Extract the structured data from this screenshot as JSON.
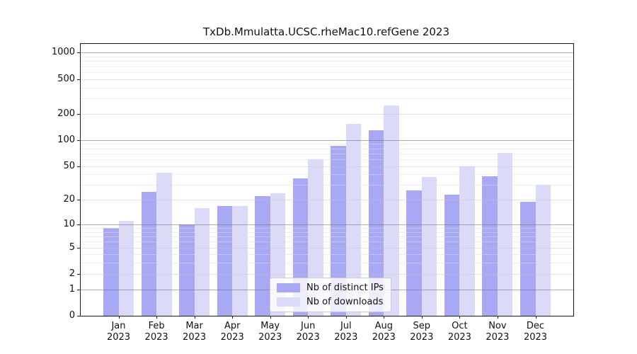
{
  "chart_data": {
    "type": "bar",
    "title": "TxDb.Mmulatta.UCSC.rheMac10.refGene 2023",
    "categories": [
      "Jan",
      "Feb",
      "Mar",
      "Apr",
      "May",
      "Jun",
      "Jul",
      "Aug",
      "Sep",
      "Oct",
      "Nov",
      "Dec"
    ],
    "x_year_label": "2023",
    "series": [
      {
        "name": "Nb of distinct IPs",
        "slug": "distinct-ips",
        "color": "#a8a8f5",
        "values": [
          9,
          25,
          10,
          17,
          22,
          36,
          86,
          130,
          26,
          23,
          38,
          19
        ]
      },
      {
        "name": "Nb of downloads",
        "slug": "downloads",
        "color": "#dbdbf9",
        "values": [
          11,
          42,
          16,
          17,
          24,
          60,
          154,
          250,
          37,
          50,
          71,
          30
        ]
      }
    ],
    "y_axis": {
      "scale": "log1p",
      "ticks": [
        0,
        1,
        2,
        5,
        10,
        20,
        50,
        100,
        200,
        500,
        1000
      ],
      "minor_ticks": [
        3,
        4,
        6,
        7,
        8,
        9,
        30,
        40,
        60,
        70,
        80,
        90,
        300,
        400,
        600,
        700,
        800,
        900
      ],
      "ylim": [
        0,
        1259
      ]
    },
    "legend": {
      "position": "lower-center"
    },
    "grid": true,
    "colors": {
      "grid_major_power10": "#b0b0b0",
      "grid_labeled": "#e6e6e6",
      "grid_minor": "#f0f0f0",
      "spine": "#1a1a1a",
      "background": "#ffffff"
    }
  }
}
